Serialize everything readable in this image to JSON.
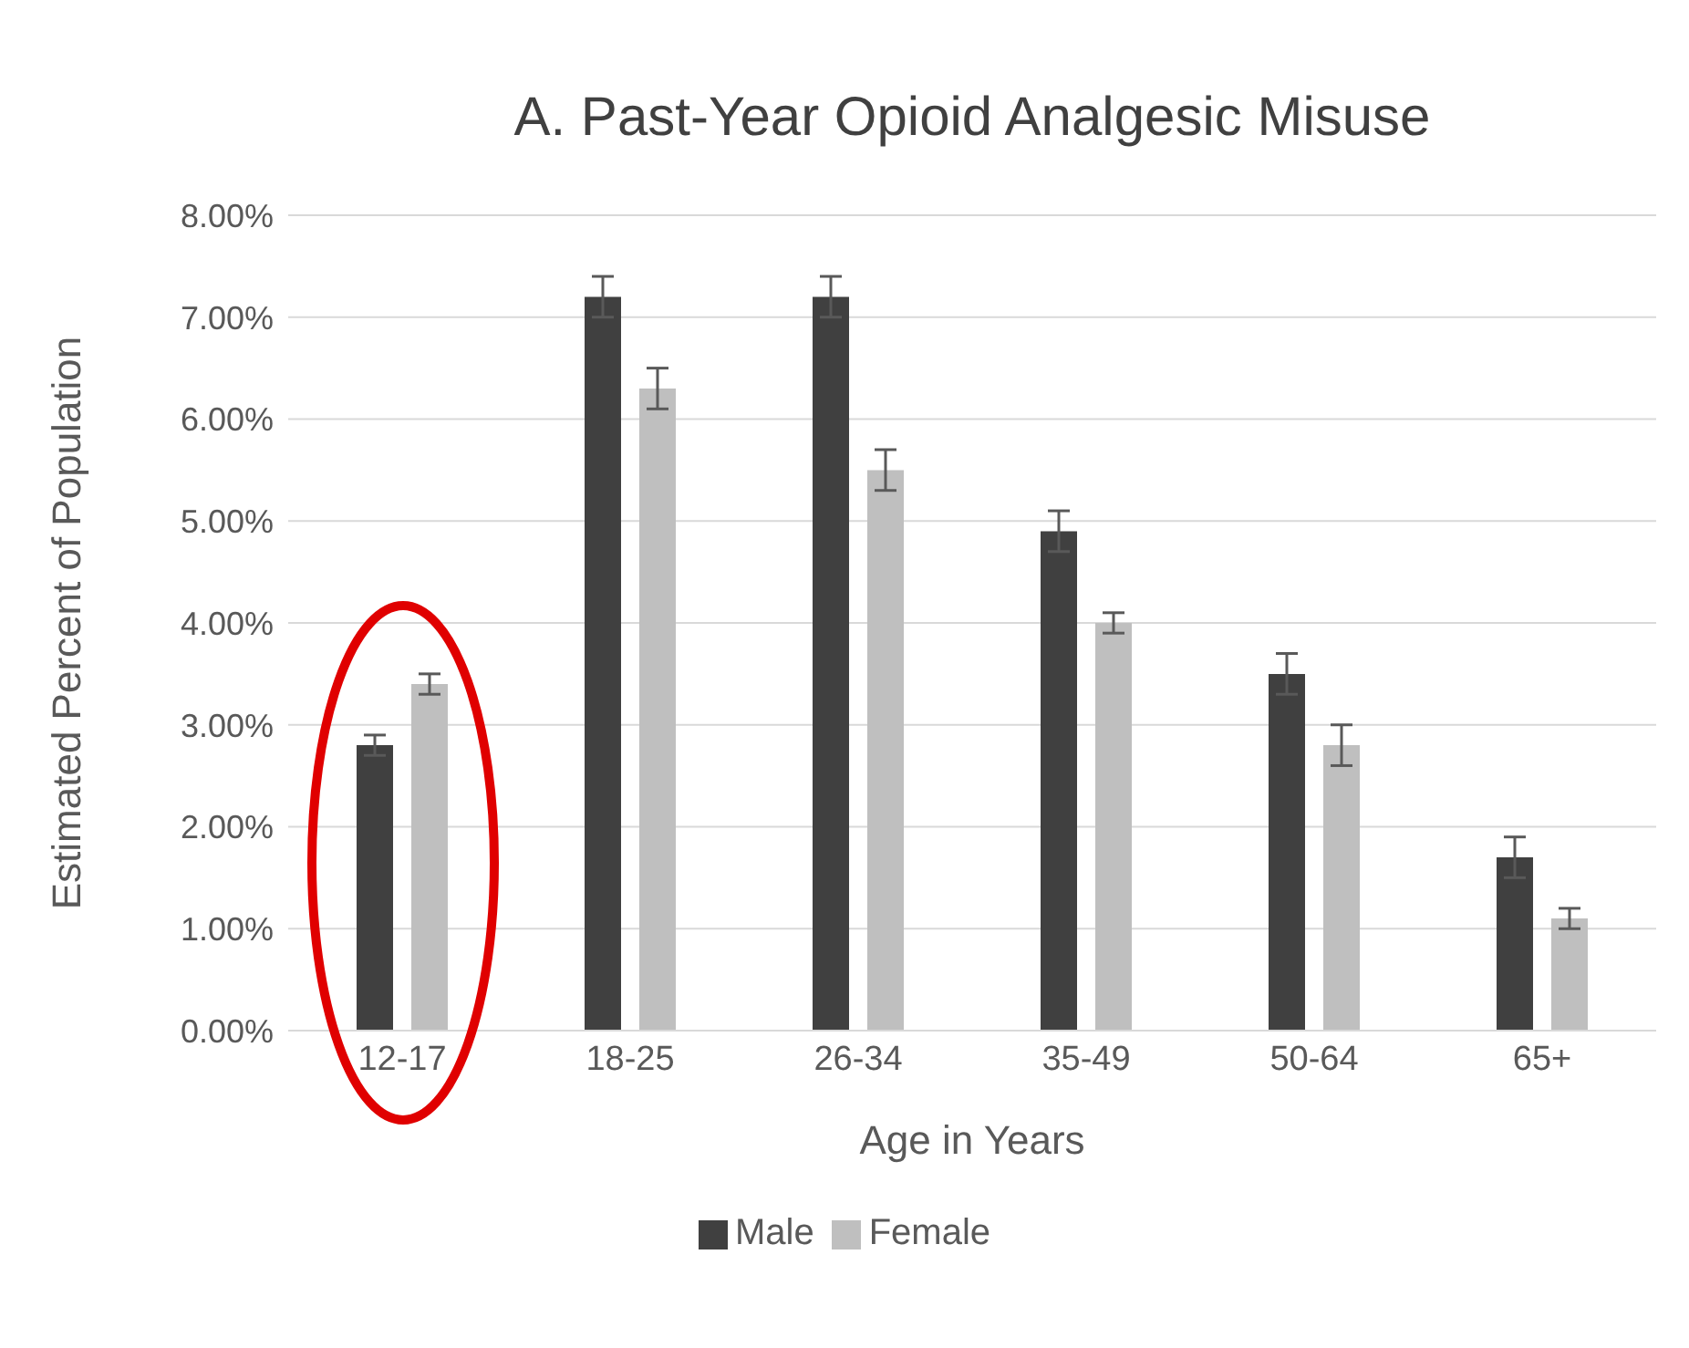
{
  "chart_data": {
    "type": "bar",
    "title": "A. Past-Year Opioid Analgesic Misuse",
    "xlabel": "Age in Years",
    "ylabel": "Estimated Percent of Population",
    "categories": [
      "12-17",
      "18-25",
      "26-34",
      "35-49",
      "50-64",
      "65+"
    ],
    "series": [
      {
        "name": "Male",
        "color": "#404040",
        "values": [
          2.8,
          7.2,
          7.2,
          4.9,
          3.5,
          1.7
        ],
        "errors": [
          0.1,
          0.2,
          0.2,
          0.2,
          0.2,
          0.2
        ]
      },
      {
        "name": "Female",
        "color": "#bfbfbf",
        "values": [
          3.4,
          6.3,
          5.5,
          4.0,
          2.8,
          1.1
        ],
        "errors": [
          0.1,
          0.2,
          0.2,
          0.1,
          0.2,
          0.1
        ]
      }
    ],
    "ylim": [
      0,
      8
    ],
    "yticks": [
      {
        "value": 0,
        "label": "0.00%"
      },
      {
        "value": 1,
        "label": "1.00%"
      },
      {
        "value": 2,
        "label": "2.00%"
      },
      {
        "value": 3,
        "label": "3.00%"
      },
      {
        "value": 4,
        "label": "4.00%"
      },
      {
        "value": 5,
        "label": "5.00%"
      },
      {
        "value": 6,
        "label": "6.00%"
      },
      {
        "value": 7,
        "label": "7.00%"
      },
      {
        "value": 8,
        "label": "8.00%"
      }
    ],
    "grid": "y",
    "legend": "bottom"
  }
}
